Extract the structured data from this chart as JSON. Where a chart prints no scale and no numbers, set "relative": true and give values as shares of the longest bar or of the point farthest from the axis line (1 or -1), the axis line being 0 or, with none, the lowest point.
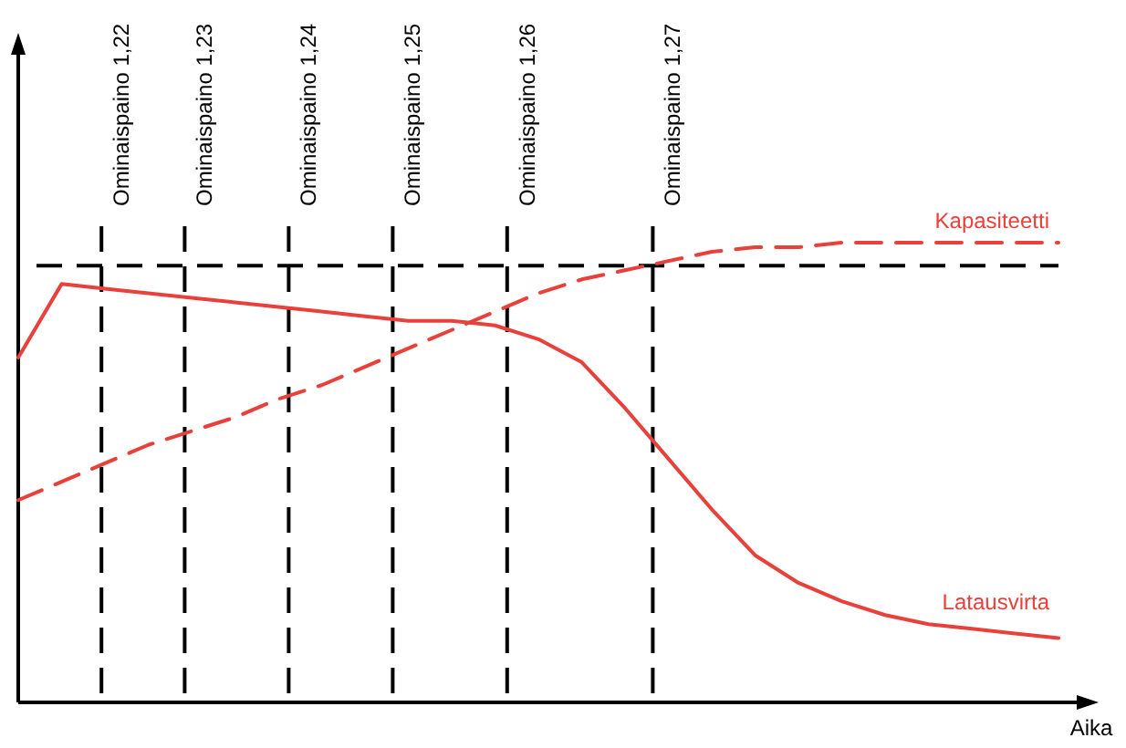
{
  "chart_data": {
    "type": "line",
    "relative": true,
    "xlabel": "Aika",
    "line_style": "solid",
    "categories": [
      null,
      null,
      null,
      null,
      null,
      null,
      null,
      null,
      null,
      null,
      null,
      null,
      null,
      null,
      null,
      null,
      null,
      null,
      null,
      null,
      null,
      null,
      null,
      null,
      null
    ],
    "series": [
      {
        "name": "Latausvirta",
        "color": "#e8403a",
        "values": [
          0.75,
          0.91,
          0.9,
          0.89,
          0.88,
          0.87,
          0.86,
          0.85,
          0.84,
          0.83,
          0.83,
          0.82,
          0.79,
          0.74,
          0.64,
          0.53,
          0.42,
          0.32,
          0.26,
          0.22,
          0.19,
          0.17,
          0.16,
          0.15,
          0.14
        ]
      },
      {
        "name": "Kapasiteetti",
        "color": "#e8403a",
        "line_style": "dashed",
        "values": [
          0.44,
          0.48,
          0.52,
          0.56,
          0.59,
          0.62,
          0.66,
          0.69,
          0.73,
          0.77,
          0.81,
          0.85,
          0.89,
          0.92,
          0.94,
          0.96,
          0.98,
          0.99,
          0.99,
          1.0,
          1.0,
          1.0,
          1.0,
          1.0,
          1.0
        ]
      }
    ],
    "annotations": [
      "Ominaispaino 1,22",
      "Ominaispaino 1,23",
      "Ominaispaino 1,24",
      "Ominaispaino 1,25",
      "Ominaispaino 1,26",
      "Ominaispaino 1,27"
    ]
  }
}
